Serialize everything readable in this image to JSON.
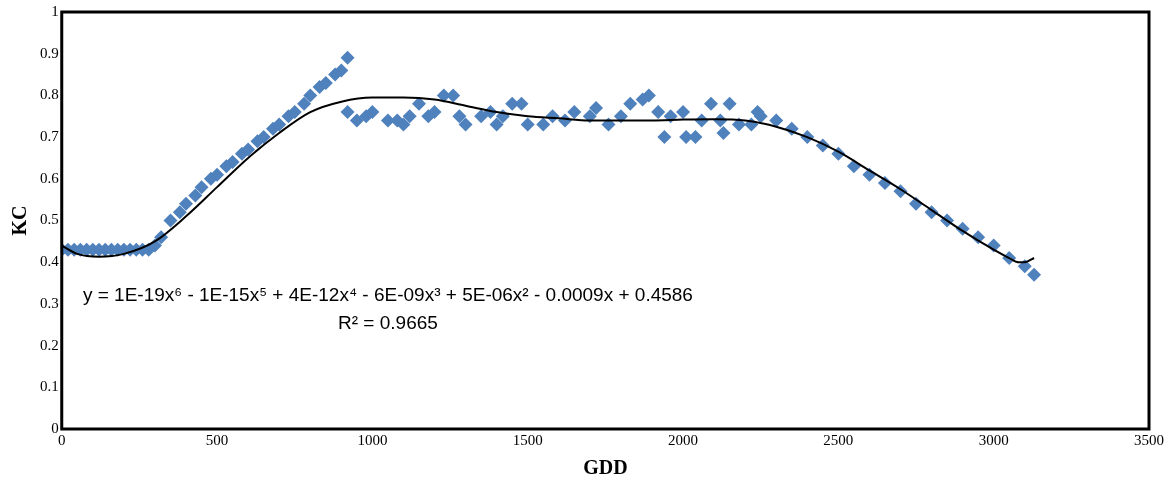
{
  "chart_data": {
    "type": "scatter",
    "xlabel": "GDD",
    "ylabel": "KC",
    "xlim": [
      0,
      3500
    ],
    "xticks": [
      0,
      500,
      1000,
      1500,
      2000,
      2500,
      3000,
      3500
    ],
    "ylim": [
      0,
      1
    ],
    "yticks": [
      0,
      0.1,
      0.2,
      0.3,
      0.4,
      0.5,
      0.6,
      0.7,
      0.8,
      0.9,
      1
    ],
    "grid": false,
    "legend": false,
    "marker": "diamond",
    "series": [
      {
        "color": "#4f81bd",
        "x": [
          0,
          20,
          40,
          60,
          80,
          100,
          120,
          140,
          160,
          180,
          200,
          220,
          240,
          260,
          280,
          300,
          320,
          350,
          380,
          400,
          430,
          450,
          480,
          500,
          530,
          550,
          580,
          600,
          630,
          650,
          680,
          700,
          730,
          750,
          780,
          800,
          830,
          850,
          880,
          900,
          920,
          920,
          950,
          980,
          1000,
          1050,
          1080,
          1100,
          1120,
          1150,
          1180,
          1200,
          1230,
          1260,
          1280,
          1300,
          1350,
          1380,
          1400,
          1420,
          1450,
          1480,
          1500,
          1550,
          1580,
          1620,
          1650,
          1700,
          1720,
          1760,
          1800,
          1830,
          1870,
          1890,
          1920,
          1940,
          1960,
          2000,
          2010,
          2040,
          2060,
          2090,
          2120,
          2130,
          2150,
          2180,
          2220,
          2240,
          2250,
          2300,
          2350,
          2400,
          2450,
          2500,
          2550,
          2600,
          2650,
          2700,
          2750,
          2800,
          2850,
          2900,
          2950,
          3000,
          3050,
          3100,
          3130
        ],
        "values": [
          0.43,
          0.43,
          0.43,
          0.43,
          0.43,
          0.43,
          0.43,
          0.43,
          0.43,
          0.43,
          0.43,
          0.43,
          0.43,
          0.43,
          0.43,
          0.44,
          0.46,
          0.5,
          0.52,
          0.54,
          0.56,
          0.58,
          0.6,
          0.61,
          0.63,
          0.64,
          0.66,
          0.67,
          0.69,
          0.7,
          0.72,
          0.73,
          0.75,
          0.76,
          0.78,
          0.8,
          0.82,
          0.83,
          0.85,
          0.86,
          0.89,
          0.76,
          0.74,
          0.75,
          0.76,
          0.74,
          0.74,
          0.73,
          0.75,
          0.78,
          0.75,
          0.76,
          0.8,
          0.8,
          0.75,
          0.73,
          0.75,
          0.76,
          0.73,
          0.75,
          0.78,
          0.78,
          0.73,
          0.73,
          0.75,
          0.74,
          0.76,
          0.75,
          0.77,
          0.73,
          0.75,
          0.78,
          0.79,
          0.8,
          0.76,
          0.7,
          0.75,
          0.76,
          0.7,
          0.7,
          0.74,
          0.78,
          0.74,
          0.71,
          0.78,
          0.73,
          0.73,
          0.76,
          0.75,
          0.74,
          0.72,
          0.7,
          0.68,
          0.66,
          0.63,
          0.61,
          0.59,
          0.57,
          0.54,
          0.52,
          0.5,
          0.48,
          0.46,
          0.44,
          0.41,
          0.39,
          0.37
        ]
      },
      {
        "type": "line",
        "color": "#000000",
        "marker": "none",
        "x": [
          0,
          50,
          120,
          200,
          300,
          400,
          500,
          600,
          700,
          800,
          900,
          1000,
          1100,
          1200,
          1300,
          1400,
          1500,
          1600,
          1700,
          1800,
          1900,
          2000,
          2100,
          2200,
          2300,
          2400,
          2500,
          2600,
          2700,
          2800,
          2900,
          3000,
          3050,
          3080,
          3100,
          3130
        ],
        "values": [
          0.44,
          0.42,
          0.413,
          0.42,
          0.45,
          0.51,
          0.58,
          0.65,
          0.71,
          0.76,
          0.785,
          0.795,
          0.795,
          0.79,
          0.775,
          0.76,
          0.75,
          0.745,
          0.74,
          0.74,
          0.74,
          0.742,
          0.743,
          0.74,
          0.725,
          0.7,
          0.665,
          0.62,
          0.575,
          0.525,
          0.475,
          0.43,
          0.41,
          0.4,
          0.4,
          0.41
        ]
      }
    ],
    "annotations": [
      "y = 1E-19x⁶ - 1E-15x⁵ + 4E-12x⁴ - 6E-09x³ + 5E-06x² - 0.0009x + 0.4586",
      "R² = 0.9665"
    ]
  }
}
